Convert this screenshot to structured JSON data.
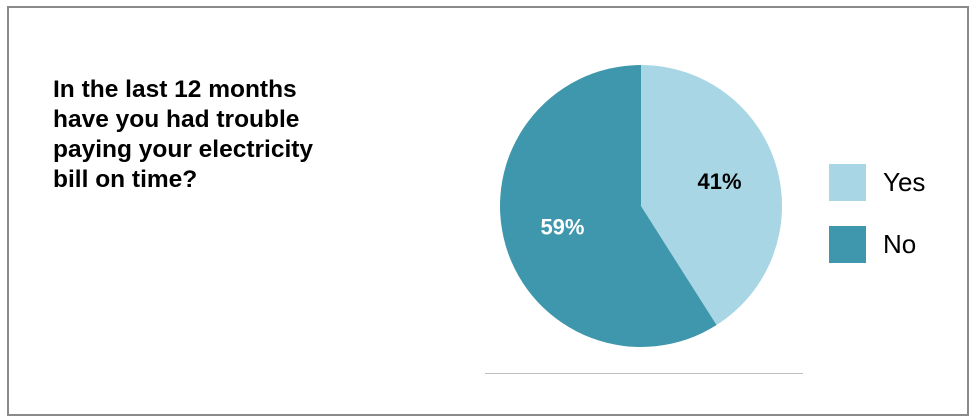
{
  "question": "In the last 12 months\nhave you had trouble\npaying your electricity\nbill on time?",
  "chart_data": {
    "type": "pie",
    "title": "",
    "categories": [
      "Yes",
      "No"
    ],
    "values": [
      41,
      59
    ],
    "data_labels": [
      "41%",
      "59%"
    ],
    "colors": [
      "#a8d6e4",
      "#3f97ad"
    ],
    "label_colors": [
      "#000000",
      "#ffffff"
    ],
    "start_angle": "12 o'clock",
    "direction": "clockwise",
    "legend_position": "right"
  },
  "legend": {
    "items": [
      {
        "label": "Yes",
        "color": "#a8d6e4"
      },
      {
        "label": "No",
        "color": "#3f97ad"
      }
    ]
  }
}
